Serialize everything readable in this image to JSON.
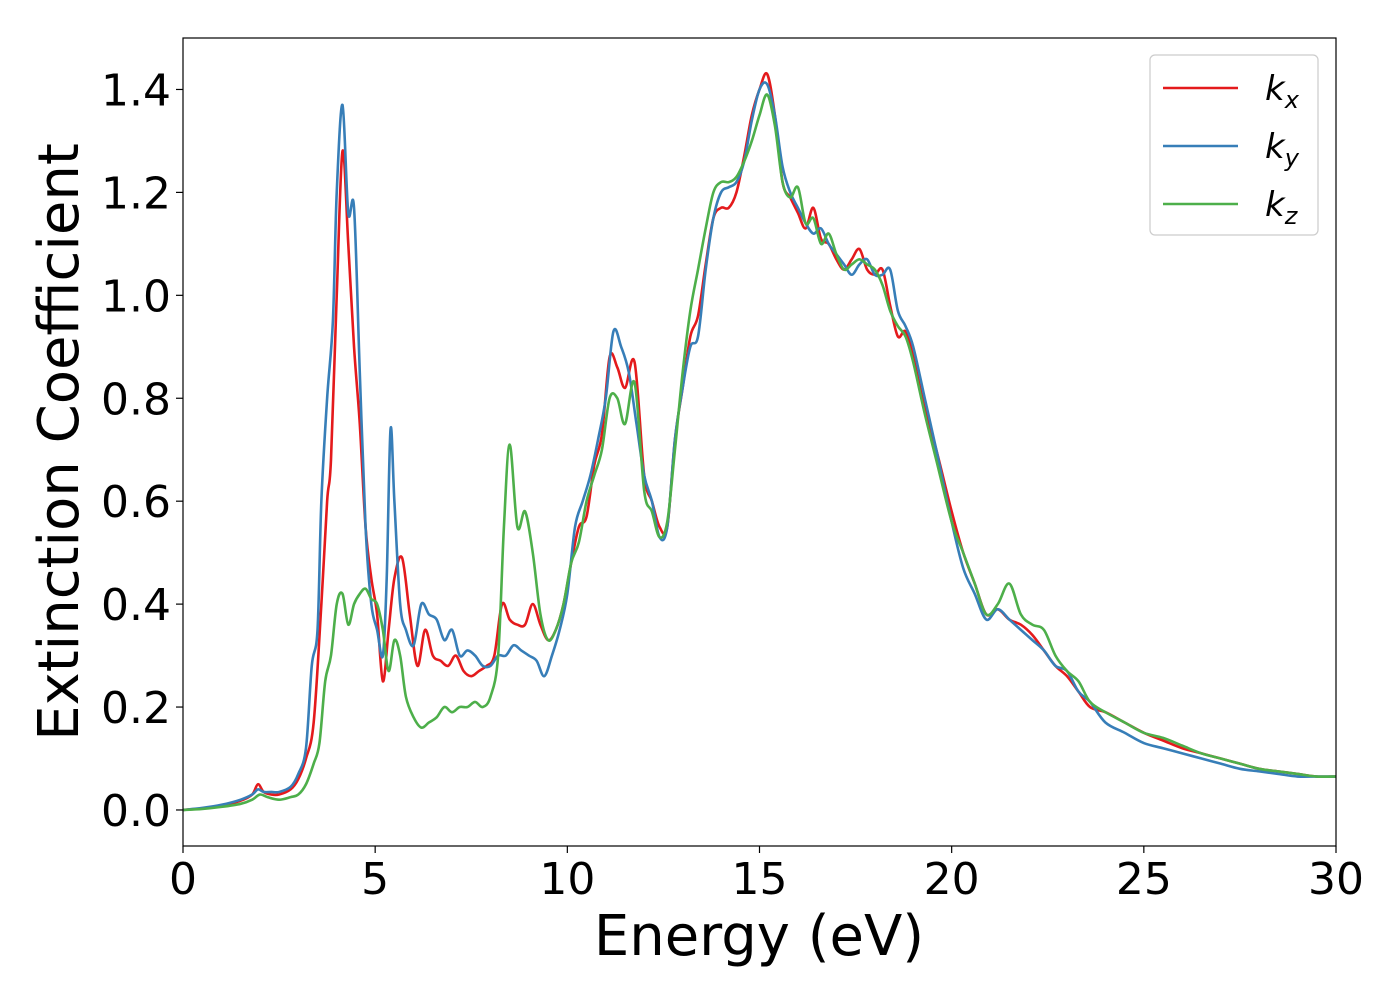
{
  "chart_data": {
    "type": "line",
    "xlabel": "Energy (eV)",
    "ylabel": "Extinction Coefficient",
    "xlim": [
      0,
      30
    ],
    "ylim": [
      -0.07,
      1.5
    ],
    "xticks": [
      0,
      5,
      10,
      15,
      20,
      25,
      30
    ],
    "yticks": [
      0.0,
      0.2,
      0.4,
      0.6,
      0.8,
      1.0,
      1.2,
      1.4
    ],
    "xtick_labels": [
      "0",
      "5",
      "10",
      "15",
      "20",
      "25",
      "30"
    ],
    "ytick_labels": [
      "0.0",
      "0.2",
      "0.4",
      "0.6",
      "0.8",
      "1.0",
      "1.2",
      "1.4"
    ],
    "grid": false,
    "legend_position": "top-right",
    "series": [
      {
        "name": "kx",
        "legend_main": "k",
        "legend_sub": "x",
        "color": "#e41a1c",
        "x": [
          0,
          0.5,
          1,
          1.5,
          1.8,
          1.95,
          2.1,
          2.3,
          2.5,
          2.8,
          3.0,
          3.2,
          3.4,
          3.6,
          3.75,
          3.85,
          4.0,
          4.15,
          4.3,
          4.45,
          4.6,
          4.75,
          4.9,
          5.05,
          5.2,
          5.35,
          5.5,
          5.7,
          5.9,
          6.1,
          6.3,
          6.5,
          6.7,
          6.9,
          7.1,
          7.3,
          7.5,
          7.7,
          7.9,
          8.1,
          8.3,
          8.5,
          8.7,
          8.9,
          9.1,
          9.3,
          9.5,
          9.7,
          9.9,
          10.1,
          10.3,
          10.5,
          10.7,
          10.9,
          11.1,
          11.3,
          11.5,
          11.75,
          12.0,
          12.2,
          12.4,
          12.6,
          12.8,
          13.0,
          13.2,
          13.4,
          13.6,
          13.8,
          14.0,
          14.2,
          14.4,
          14.6,
          14.8,
          15.0,
          15.2,
          15.4,
          15.6,
          15.8,
          16.0,
          16.2,
          16.4,
          16.6,
          16.8,
          17.0,
          17.2,
          17.4,
          17.6,
          17.8,
          18.0,
          18.2,
          18.4,
          18.6,
          18.8,
          19.0,
          19.3,
          19.6,
          20.0,
          20.3,
          20.6,
          20.9,
          21.2,
          21.5,
          21.8,
          22.1,
          22.4,
          22.7,
          23.0,
          23.3,
          23.6,
          24.0,
          24.5,
          25.0,
          25.5,
          26.0,
          26.5,
          27.0,
          27.5,
          28.0,
          28.5,
          29.0,
          29.5,
          30.0
        ],
        "y": [
          0.0,
          0.003,
          0.008,
          0.018,
          0.03,
          0.05,
          0.035,
          0.03,
          0.03,
          0.04,
          0.06,
          0.1,
          0.17,
          0.4,
          0.6,
          0.68,
          1.0,
          1.28,
          1.1,
          0.9,
          0.75,
          0.55,
          0.45,
          0.38,
          0.25,
          0.35,
          0.45,
          0.49,
          0.38,
          0.28,
          0.35,
          0.3,
          0.29,
          0.28,
          0.3,
          0.27,
          0.26,
          0.27,
          0.28,
          0.3,
          0.4,
          0.37,
          0.36,
          0.36,
          0.4,
          0.36,
          0.33,
          0.35,
          0.4,
          0.48,
          0.55,
          0.57,
          0.67,
          0.73,
          0.88,
          0.86,
          0.82,
          0.87,
          0.65,
          0.6,
          0.55,
          0.55,
          0.72,
          0.82,
          0.92,
          0.96,
          1.06,
          1.15,
          1.17,
          1.17,
          1.2,
          1.27,
          1.35,
          1.4,
          1.43,
          1.35,
          1.22,
          1.19,
          1.16,
          1.13,
          1.17,
          1.11,
          1.1,
          1.07,
          1.05,
          1.07,
          1.09,
          1.05,
          1.04,
          1.05,
          0.98,
          0.92,
          0.93,
          0.88,
          0.78,
          0.7,
          0.58,
          0.5,
          0.44,
          0.38,
          0.39,
          0.37,
          0.36,
          0.34,
          0.31,
          0.28,
          0.26,
          0.23,
          0.2,
          0.19,
          0.17,
          0.15,
          0.135,
          0.12,
          0.11,
          0.1,
          0.09,
          0.08,
          0.075,
          0.07,
          0.065,
          0.065
        ],
        "legend_label": "kx"
      },
      {
        "name": "ky",
        "legend_main": "k",
        "legend_sub": "y",
        "color": "#377eb8",
        "x": [
          0,
          0.5,
          1,
          1.5,
          1.8,
          1.95,
          2.1,
          2.3,
          2.5,
          2.8,
          3.0,
          3.2,
          3.35,
          3.5,
          3.6,
          3.75,
          3.9,
          4.0,
          4.15,
          4.3,
          4.45,
          4.6,
          4.75,
          4.9,
          5.05,
          5.2,
          5.3,
          5.4,
          5.5,
          5.65,
          5.8,
          6.0,
          6.2,
          6.4,
          6.6,
          6.8,
          7.0,
          7.2,
          7.4,
          7.6,
          7.8,
          8.0,
          8.2,
          8.4,
          8.6,
          8.8,
          9.0,
          9.2,
          9.4,
          9.6,
          9.8,
          10.0,
          10.2,
          10.4,
          10.6,
          10.8,
          11.0,
          11.2,
          11.4,
          11.6,
          11.8,
          12.0,
          12.2,
          12.4,
          12.6,
          12.8,
          13.0,
          13.2,
          13.4,
          13.6,
          13.8,
          14.0,
          14.2,
          14.4,
          14.6,
          14.8,
          15.0,
          15.2,
          15.4,
          15.6,
          15.8,
          16.0,
          16.2,
          16.4,
          16.6,
          16.8,
          17.0,
          17.2,
          17.4,
          17.6,
          17.8,
          18.0,
          18.2,
          18.4,
          18.6,
          18.8,
          19.0,
          19.3,
          19.6,
          20.0,
          20.3,
          20.6,
          20.9,
          21.2,
          21.5,
          21.8,
          22.1,
          22.4,
          22.7,
          23.0,
          23.3,
          23.6,
          24.0,
          24.5,
          25.0,
          25.5,
          26.0,
          26.5,
          27.0,
          27.5,
          28.0,
          28.5,
          29.0,
          29.5,
          30.0
        ],
        "y": [
          0.0,
          0.004,
          0.01,
          0.02,
          0.03,
          0.04,
          0.035,
          0.035,
          0.035,
          0.045,
          0.07,
          0.12,
          0.28,
          0.35,
          0.6,
          0.8,
          0.95,
          1.2,
          1.37,
          1.16,
          1.17,
          0.85,
          0.55,
          0.4,
          0.35,
          0.3,
          0.45,
          0.74,
          0.6,
          0.4,
          0.35,
          0.32,
          0.4,
          0.38,
          0.37,
          0.33,
          0.35,
          0.3,
          0.31,
          0.3,
          0.28,
          0.28,
          0.3,
          0.3,
          0.32,
          0.31,
          0.3,
          0.29,
          0.26,
          0.3,
          0.35,
          0.42,
          0.55,
          0.6,
          0.65,
          0.72,
          0.8,
          0.93,
          0.9,
          0.85,
          0.75,
          0.65,
          0.6,
          0.53,
          0.55,
          0.72,
          0.82,
          0.9,
          0.92,
          1.05,
          1.15,
          1.2,
          1.21,
          1.22,
          1.26,
          1.34,
          1.4,
          1.41,
          1.35,
          1.25,
          1.2,
          1.17,
          1.14,
          1.12,
          1.13,
          1.1,
          1.08,
          1.06,
          1.04,
          1.06,
          1.07,
          1.04,
          1.04,
          1.05,
          0.97,
          0.94,
          0.9,
          0.8,
          0.7,
          0.56,
          0.47,
          0.42,
          0.37,
          0.39,
          0.37,
          0.35,
          0.33,
          0.31,
          0.28,
          0.27,
          0.23,
          0.21,
          0.17,
          0.15,
          0.13,
          0.12,
          0.11,
          0.1,
          0.09,
          0.08,
          0.075,
          0.07,
          0.065,
          0.065,
          0.065
        ],
        "legend_label": "ky"
      },
      {
        "name": "kz",
        "legend_main": "k",
        "legend_sub": "z",
        "color": "#4daf4a",
        "x": [
          0,
          0.5,
          1,
          1.5,
          1.8,
          2.0,
          2.2,
          2.5,
          2.8,
          3.0,
          3.2,
          3.4,
          3.55,
          3.7,
          3.85,
          4.0,
          4.15,
          4.3,
          4.45,
          4.6,
          4.75,
          4.9,
          5.05,
          5.2,
          5.35,
          5.5,
          5.65,
          5.8,
          6.0,
          6.2,
          6.4,
          6.6,
          6.8,
          7.0,
          7.2,
          7.4,
          7.6,
          7.8,
          8.0,
          8.2,
          8.35,
          8.5,
          8.7,
          8.9,
          9.1,
          9.3,
          9.5,
          9.7,
          9.9,
          10.1,
          10.3,
          10.5,
          10.7,
          10.9,
          11.1,
          11.3,
          11.5,
          11.75,
          12.0,
          12.2,
          12.4,
          12.6,
          12.8,
          13.0,
          13.2,
          13.4,
          13.6,
          13.8,
          14.0,
          14.2,
          14.4,
          14.6,
          14.8,
          15.0,
          15.2,
          15.4,
          15.6,
          15.8,
          16.0,
          16.2,
          16.4,
          16.6,
          16.8,
          17.0,
          17.2,
          17.4,
          17.6,
          17.8,
          18.0,
          18.2,
          18.4,
          18.6,
          18.8,
          19.0,
          19.3,
          19.6,
          20.0,
          20.3,
          20.6,
          20.9,
          21.2,
          21.5,
          21.8,
          22.1,
          22.4,
          22.7,
          23.0,
          23.3,
          23.6,
          24.0,
          24.5,
          25.0,
          25.5,
          26.0,
          26.5,
          27.0,
          27.5,
          28.0,
          28.5,
          29.0,
          29.5,
          30.0
        ],
        "y": [
          0.0,
          0.002,
          0.006,
          0.012,
          0.02,
          0.03,
          0.025,
          0.02,
          0.025,
          0.03,
          0.05,
          0.09,
          0.13,
          0.25,
          0.3,
          0.4,
          0.42,
          0.36,
          0.4,
          0.42,
          0.43,
          0.41,
          0.4,
          0.35,
          0.27,
          0.33,
          0.3,
          0.22,
          0.18,
          0.16,
          0.17,
          0.18,
          0.2,
          0.19,
          0.2,
          0.2,
          0.21,
          0.2,
          0.22,
          0.3,
          0.55,
          0.71,
          0.55,
          0.58,
          0.5,
          0.38,
          0.33,
          0.35,
          0.4,
          0.48,
          0.52,
          0.6,
          0.65,
          0.7,
          0.8,
          0.8,
          0.75,
          0.83,
          0.62,
          0.58,
          0.53,
          0.56,
          0.7,
          0.85,
          0.97,
          1.05,
          1.13,
          1.2,
          1.22,
          1.22,
          1.23,
          1.26,
          1.3,
          1.35,
          1.39,
          1.33,
          1.22,
          1.19,
          1.21,
          1.14,
          1.15,
          1.1,
          1.12,
          1.08,
          1.05,
          1.06,
          1.07,
          1.06,
          1.05,
          1.02,
          0.97,
          0.94,
          0.92,
          0.87,
          0.77,
          0.68,
          0.56,
          0.5,
          0.44,
          0.38,
          0.4,
          0.44,
          0.38,
          0.36,
          0.35,
          0.3,
          0.27,
          0.25,
          0.21,
          0.19,
          0.17,
          0.15,
          0.14,
          0.125,
          0.11,
          0.1,
          0.09,
          0.08,
          0.075,
          0.07,
          0.065,
          0.065
        ],
        "legend_label": "kz"
      }
    ]
  }
}
